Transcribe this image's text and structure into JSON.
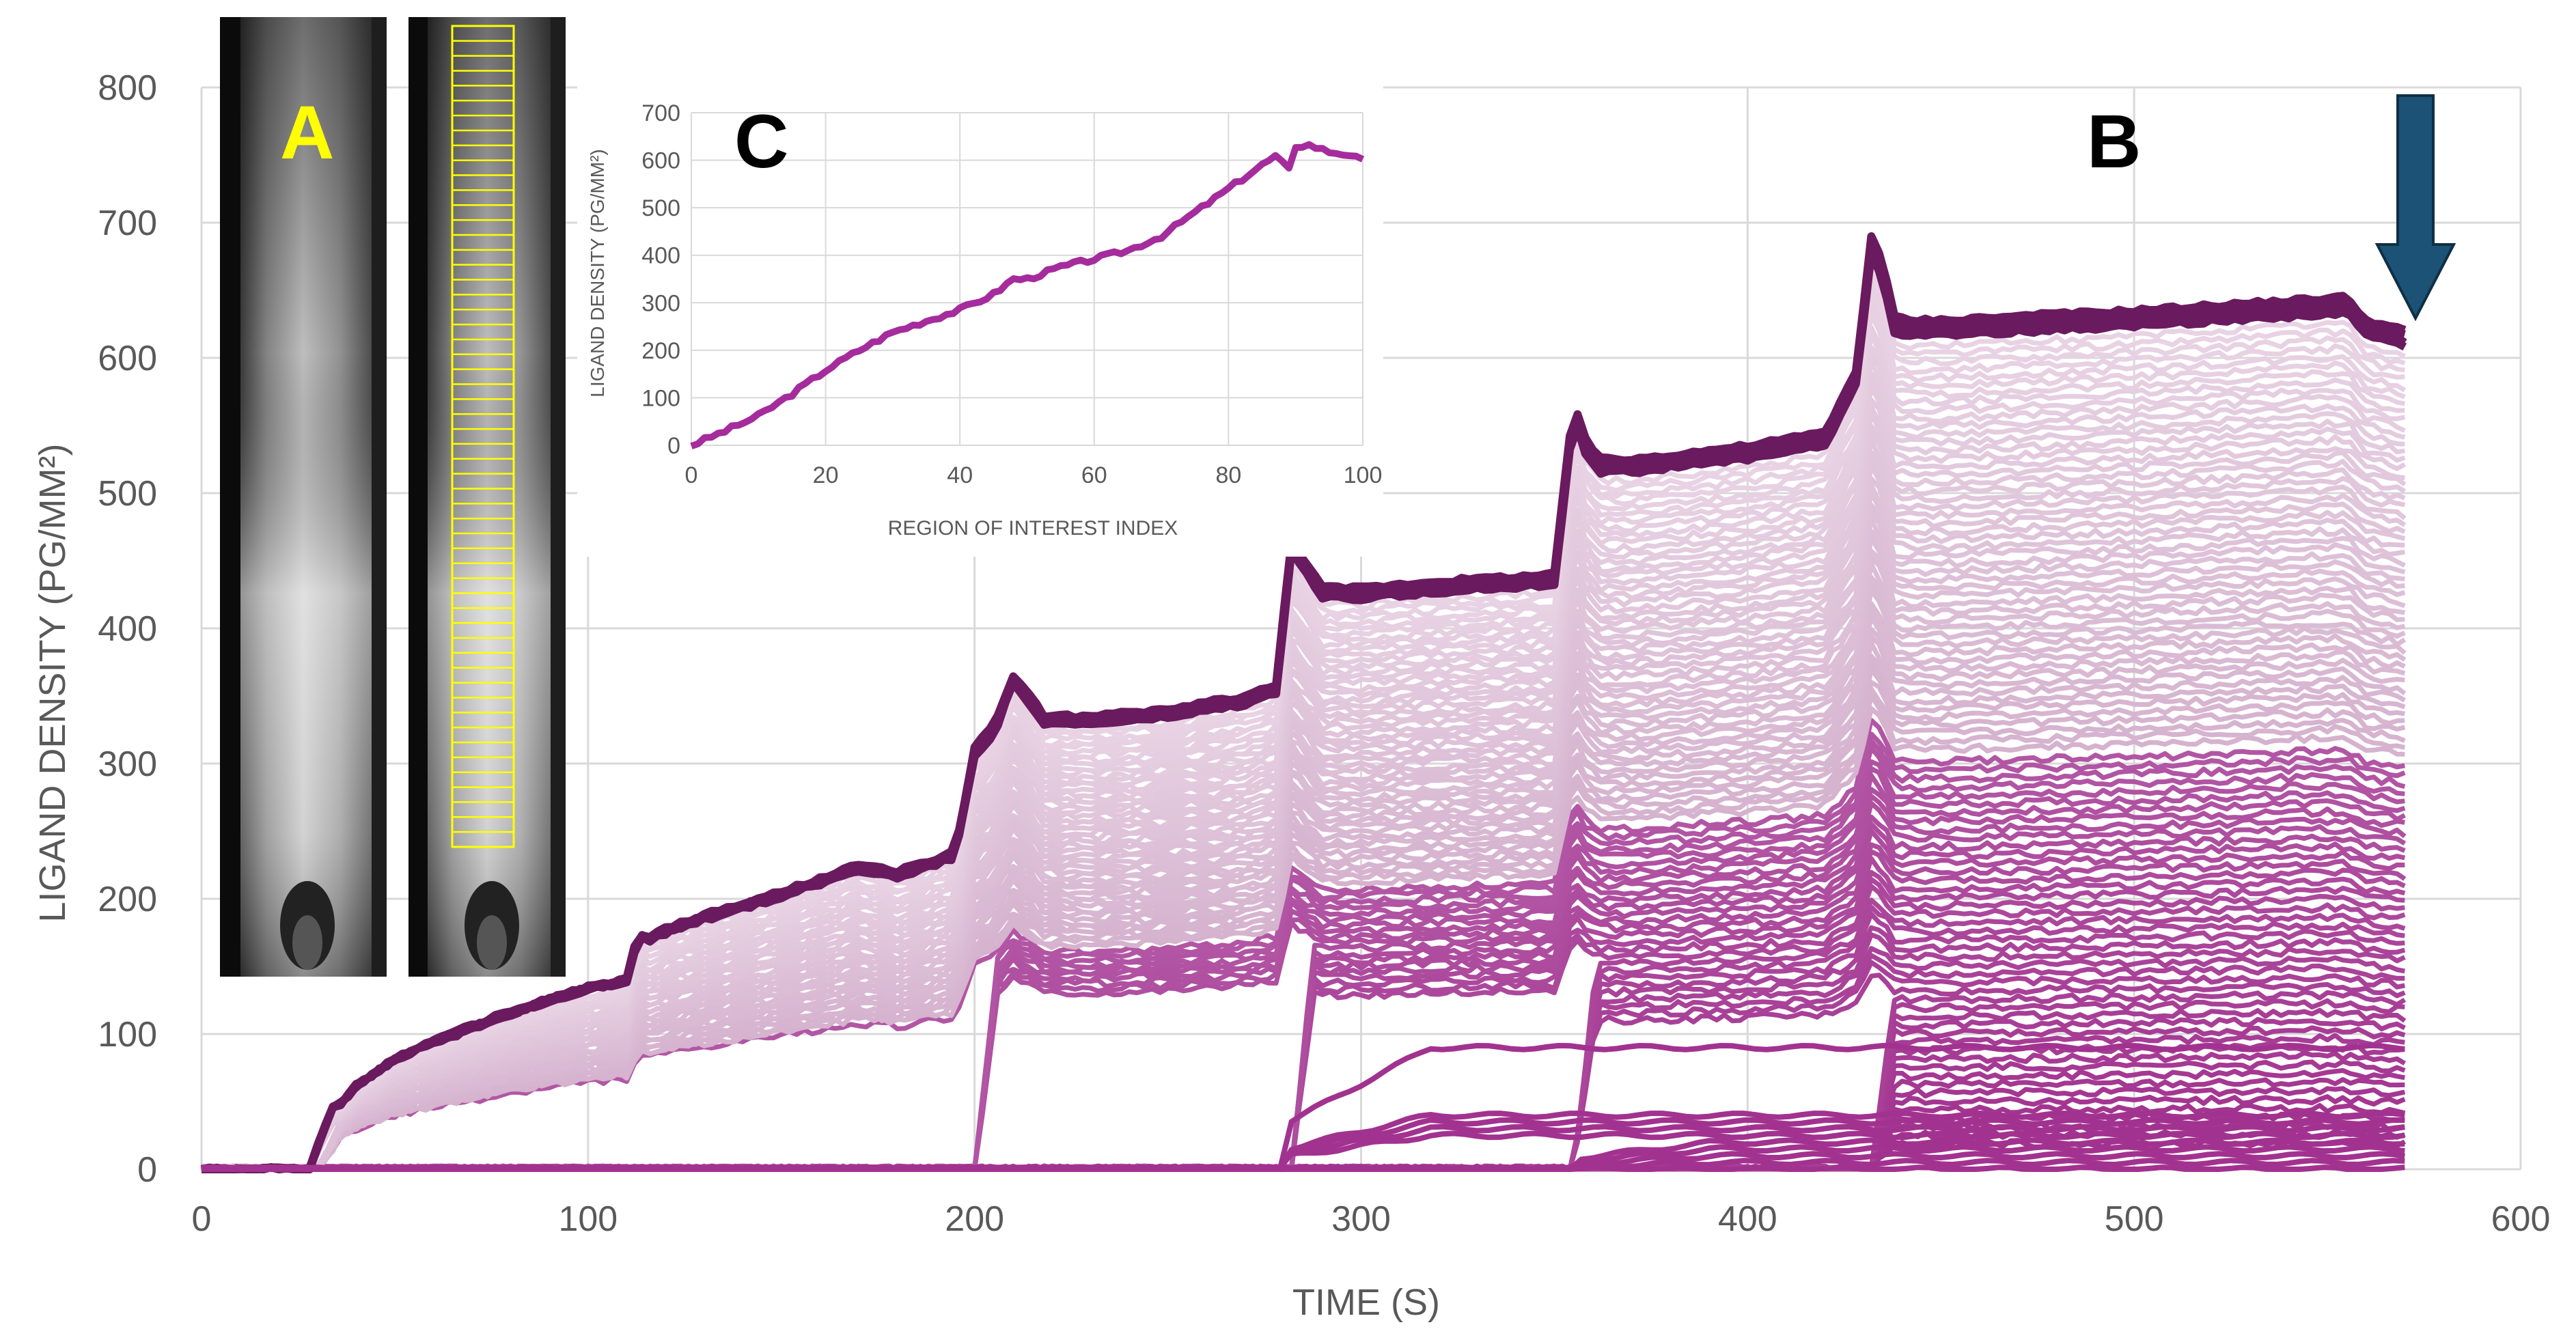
{
  "colors": {
    "background": "#ffffff",
    "grid": "#d9d9d9",
    "tick_text": "#595959",
    "curve_dark": "#6a1a5e",
    "curve_mid": "#a2328f",
    "curve_light": "#e8d3e4",
    "inset_line": "#a52c9c",
    "arrow": "#1b5276",
    "roi_box": "#ffff00",
    "label_A": "#ffff00",
    "label_B": "#000000",
    "label_C": "#000000"
  },
  "chart_data": [
    {
      "panel": "B",
      "type": "line",
      "xlabel": "TIME (S)",
      "ylabel": "LIGAND DENSITY (PG/MM²)",
      "xlim": [
        0,
        600
      ],
      "ylim": [
        0,
        800
      ],
      "x_ticks": [
        "0",
        "100",
        "200",
        "300",
        "400",
        "500",
        "600"
      ],
      "y_ticks": [
        "0",
        "100",
        "200",
        "300",
        "400",
        "500",
        "600",
        "700",
        "800"
      ],
      "grid": true,
      "series_count": 101,
      "series_note": "one trace per region of interest; dark = top ROIs (highest density), light = middle, magenta = bottom ROIs",
      "envelope": {
        "x": [
          0,
          14,
          22,
          28,
          30,
          32,
          35,
          40,
          50,
          60,
          80,
          100,
          110,
          113,
          116,
          120,
          130,
          150,
          170,
          180,
          195,
          200,
          205,
          210,
          213,
          218,
          230,
          250,
          270,
          278,
          282,
          285,
          290,
          300,
          320,
          350,
          355,
          358,
          362,
          370,
          400,
          420,
          428,
          432,
          435,
          438,
          442,
          450,
          500,
          555,
          560,
          570
        ],
        "y": [
          0,
          0,
          5,
          25,
          52,
          48,
          45,
          62,
          82,
          95,
          117,
          135,
          140,
          175,
          172,
          178,
          188,
          205,
          225,
          220,
          235,
          312,
          328,
          365,
          356,
          335,
          335,
          340,
          350,
          358,
          465,
          452,
          430,
          430,
          435,
          440,
          568,
          540,
          525,
          525,
          535,
          545,
          590,
          690,
          670,
          630,
          628,
          628,
          635,
          645,
          628,
          620
        ]
      },
      "step_times": [
        30,
        113,
        200,
        282,
        355,
        432
      ],
      "bottom_cluster_levels": [
        0,
        5,
        10,
        15,
        20,
        25,
        30,
        35,
        40,
        90
      ],
      "end_time": 570
    },
    {
      "panel": "C",
      "type": "line",
      "xlabel": "REGION OF INTEREST INDEX",
      "ylabel": "LIGAND DENSITY (PG/MM²)",
      "xlim": [
        0,
        100
      ],
      "ylim": [
        0,
        700
      ],
      "x_ticks": [
        "0",
        "20",
        "40",
        "60",
        "80",
        "100"
      ],
      "y_ticks": [
        "0",
        "100",
        "200",
        "300",
        "400",
        "500",
        "600",
        "700"
      ],
      "grid": true,
      "x": [
        0,
        5,
        10,
        15,
        20,
        25,
        30,
        35,
        40,
        45,
        48,
        50,
        55,
        60,
        65,
        70,
        75,
        80,
        85,
        87,
        89,
        90,
        92,
        95,
        98,
        100
      ],
      "y": [
        0,
        30,
        62,
        108,
        158,
        200,
        238,
        262,
        285,
        318,
        350,
        350,
        375,
        392,
        410,
        440,
        490,
        540,
        590,
        608,
        580,
        630,
        632,
        618,
        612,
        598
      ]
    }
  ],
  "panel_labels": {
    "a": "A",
    "b": "B",
    "c": "C"
  },
  "image_panel": {
    "description_icons": [
      "microscope-image-raw",
      "microscope-image-roi-grid"
    ],
    "roi_rows": 55
  }
}
